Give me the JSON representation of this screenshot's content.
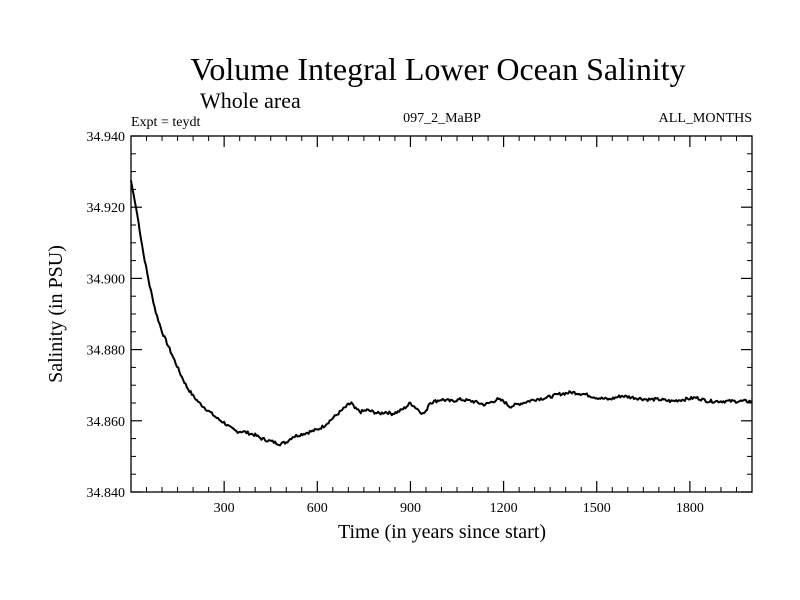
{
  "chart_data": {
    "type": "line",
    "title": "Volume Integral Lower Ocean Salinity",
    "subtitle": "Whole area",
    "experiment_label": "Expt = teydt",
    "run_label": "097_2_MaBP",
    "period_label": "ALL_MONTHS",
    "xlabel": "Time (in years since start)",
    "ylabel": "Salinity (in PSU)",
    "xlim": [
      0,
      2000
    ],
    "ylim": [
      34.84,
      34.94
    ],
    "x_ticks": [
      300,
      600,
      900,
      1200,
      1500,
      1800
    ],
    "x_tick_labels": [
      "300",
      "600",
      "900",
      "1200",
      "1500",
      "1800"
    ],
    "y_ticks": [
      34.84,
      34.86,
      34.88,
      34.9,
      34.92,
      34.94
    ],
    "y_tick_labels": [
      "34.840",
      "34.860",
      "34.880",
      "34.900",
      "34.920",
      "34.940"
    ],
    "series": [
      {
        "name": "salinity",
        "x": [
          0,
          20,
          40,
          60,
          80,
          100,
          120,
          140,
          160,
          180,
          200,
          220,
          240,
          260,
          280,
          300,
          320,
          340,
          360,
          380,
          400,
          420,
          440,
          460,
          480,
          500,
          520,
          540,
          560,
          580,
          600,
          620,
          640,
          660,
          680,
          700,
          710,
          720,
          740,
          760,
          780,
          800,
          820,
          840,
          860,
          880,
          900,
          920,
          940,
          950,
          960,
          980,
          1000,
          1030,
          1060,
          1100,
          1140,
          1180,
          1200,
          1220,
          1260,
          1300,
          1340,
          1380,
          1420,
          1460,
          1500,
          1540,
          1580,
          1620,
          1660,
          1700,
          1740,
          1780,
          1820,
          1860,
          1900,
          1940,
          1980,
          2000
        ],
        "values": [
          34.9275,
          34.918,
          34.907,
          34.898,
          34.8905,
          34.885,
          34.881,
          34.877,
          34.873,
          34.8695,
          34.867,
          34.865,
          34.8635,
          34.862,
          34.8605,
          34.8595,
          34.858,
          34.857,
          34.857,
          34.8565,
          34.856,
          34.855,
          34.8545,
          34.854,
          34.8535,
          34.854,
          34.8555,
          34.856,
          34.8565,
          34.857,
          34.8575,
          34.8585,
          34.86,
          34.8615,
          34.863,
          34.8645,
          34.865,
          34.8635,
          34.8625,
          34.863,
          34.8625,
          34.862,
          34.8625,
          34.862,
          34.8625,
          34.8635,
          34.865,
          34.8635,
          34.862,
          34.8625,
          34.865,
          34.8655,
          34.866,
          34.8655,
          34.866,
          34.8655,
          34.8645,
          34.866,
          34.8655,
          34.864,
          34.865,
          34.866,
          34.8665,
          34.8675,
          34.868,
          34.8675,
          34.8665,
          34.866,
          34.867,
          34.8665,
          34.866,
          34.866,
          34.8655,
          34.866,
          34.8665,
          34.8655,
          34.8655,
          34.8655,
          34.8655,
          34.8655
        ]
      }
    ]
  }
}
